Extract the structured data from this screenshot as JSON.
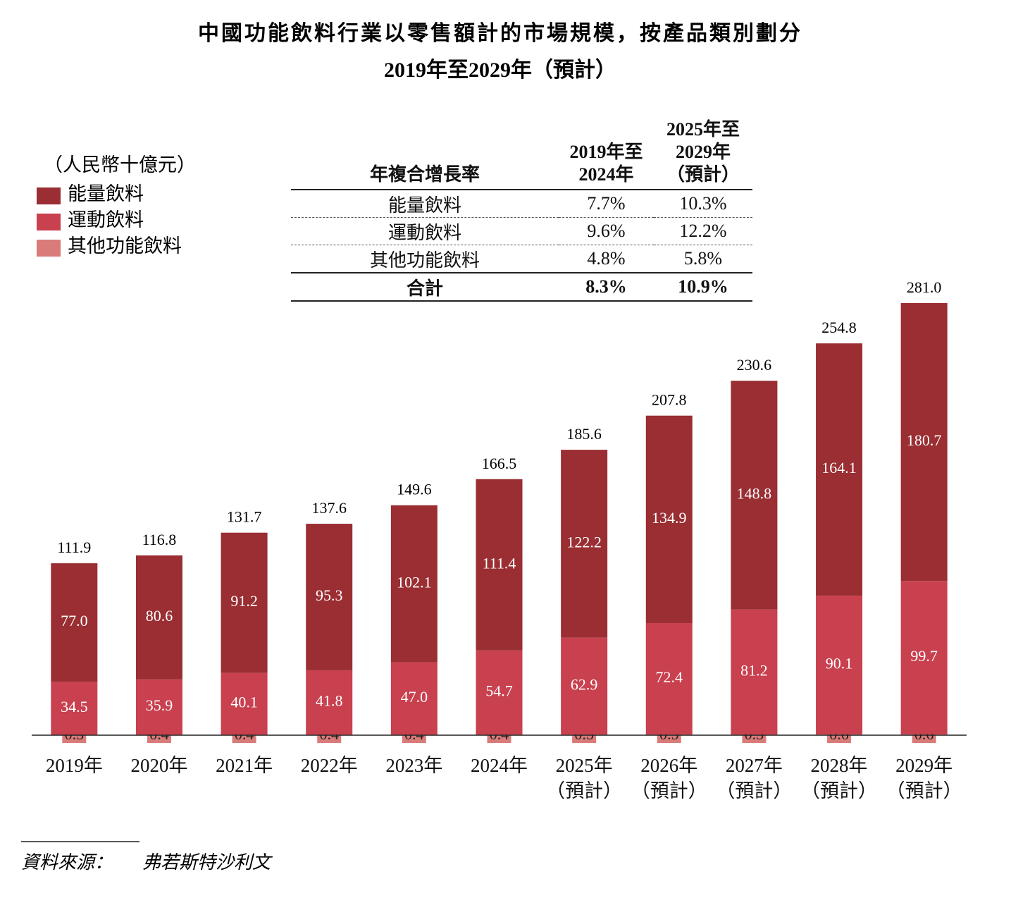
{
  "chart_data": {
    "type": "bar",
    "stacked": true,
    "title": "中國功能飲料行業以零售額計的市場規模，按產品類別劃分",
    "subtitle": "2019年至2029年（預計）",
    "unit": "（人民幣十億元）",
    "categories": [
      "2019年",
      "2020年",
      "2021年",
      "2022年",
      "2023年",
      "2024年",
      "2025年\n（預計）",
      "2026年\n（預計）",
      "2027年\n（預計）",
      "2028年\n（預計）",
      "2029年\n（預計）"
    ],
    "series": [
      {
        "name": "能量飲料",
        "color": "#9a2e33",
        "values": [
          77.0,
          80.6,
          91.2,
          95.3,
          102.1,
          111.4,
          122.2,
          134.9,
          148.8,
          164.1,
          180.7
        ],
        "value_labels": [
          "77.0",
          "80.6",
          "91.2",
          "95.3",
          "102.1",
          "111.4",
          "122.2",
          "134.9",
          "148.8",
          "164.1",
          "180.7"
        ]
      },
      {
        "name": "運動飲料",
        "color": "#c9404f",
        "values": [
          34.5,
          35.9,
          40.1,
          41.8,
          47.0,
          54.7,
          62.9,
          72.4,
          81.2,
          90.1,
          99.7
        ],
        "value_labels": [
          "34.5",
          "35.9",
          "40.1",
          "41.8",
          "47.0",
          "54.7",
          "62.9",
          "72.4",
          "81.2",
          "90.1",
          "99.7"
        ]
      },
      {
        "name": "其他功能飲料",
        "color": "#d97b79",
        "values": [
          0.3,
          0.4,
          0.4,
          0.4,
          0.4,
          0.4,
          0.5,
          0.5,
          0.5,
          0.6,
          0.6
        ]
      }
    ],
    "totals": {
      "values": [
        111.9,
        116.8,
        131.7,
        137.6,
        149.6,
        166.5,
        185.6,
        207.8,
        230.6,
        254.8,
        281.0
      ],
      "value_labels": [
        "111.9",
        "116.8",
        "131.7",
        "137.6",
        "149.6",
        "166.5",
        "185.6",
        "207.8",
        "230.6",
        "254.8",
        "281.0"
      ]
    },
    "ylim": [
      0,
      300
    ]
  },
  "cagr_table": {
    "header": [
      "年複合增長率",
      "2019年至\n2024年",
      "2025年至\n2029年\n（預計）"
    ],
    "rows": [
      [
        "能量飲料",
        "7.7%",
        "10.3%"
      ],
      [
        "運動飲料",
        "9.6%",
        "12.2%"
      ],
      [
        "其他功能飲料",
        "4.8%",
        "5.8%"
      ],
      [
        "合計",
        "8.3%",
        "10.9%"
      ]
    ]
  },
  "source": {
    "label": "資料來源：",
    "text": "弗若斯特沙利文"
  }
}
